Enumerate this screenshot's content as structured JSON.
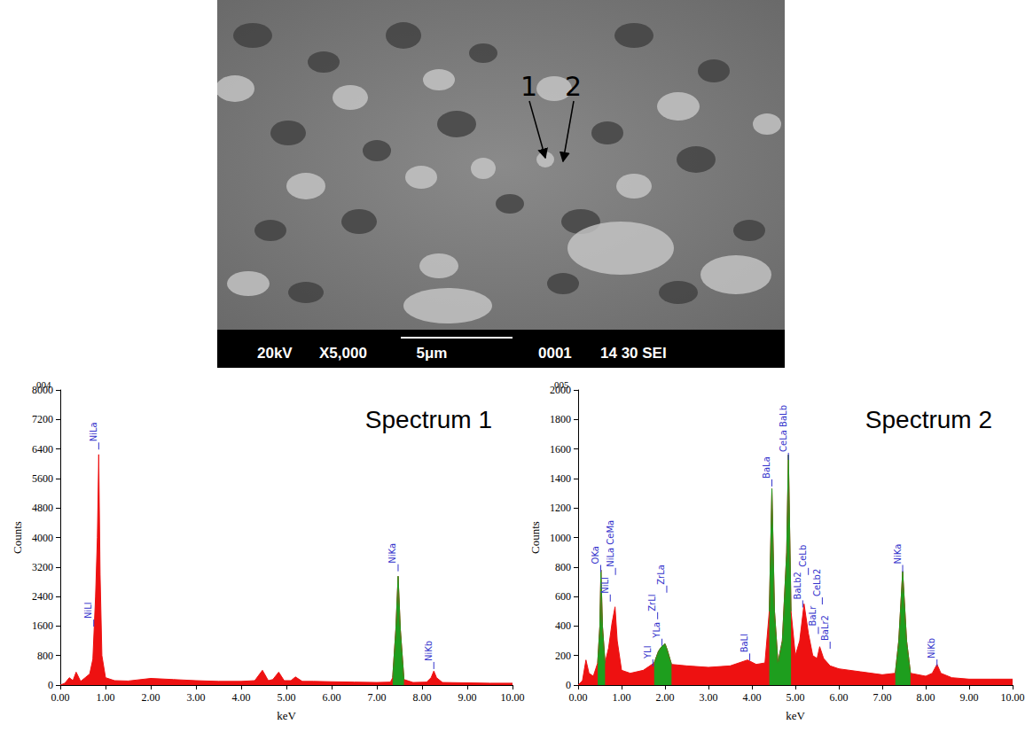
{
  "image": {
    "markers": [
      "1",
      "2"
    ],
    "info_bar": [
      "20kV",
      "X5,000",
      "5μm",
      "0001",
      "14 30 SEI"
    ]
  },
  "chart_data": [
    {
      "type": "area",
      "header": "004",
      "title": "Spectrum 1",
      "xlabel": "keV",
      "ylabel": "Counts",
      "x": [
        0,
        0.1,
        0.2,
        0.28,
        0.35,
        0.45,
        0.55,
        0.65,
        0.72,
        0.78,
        0.82,
        0.85,
        0.88,
        0.92,
        1.0,
        1.2,
        1.5,
        2.0,
        2.5,
        3.0,
        3.5,
        4.0,
        4.3,
        4.47,
        4.6,
        4.7,
        4.83,
        4.95,
        5.1,
        5.2,
        5.35,
        5.6,
        6.0,
        6.5,
        7.0,
        7.3,
        7.35,
        7.42,
        7.47,
        7.52,
        7.6,
        7.8,
        8.1,
        8.2,
        8.26,
        8.32,
        8.45,
        9.0,
        9.5,
        10.0
      ],
      "series": [
        {
          "color": "#ee1111",
          "values": [
            0,
            50,
            200,
            120,
            350,
            100,
            200,
            300,
            700,
            2400,
            4000,
            6250,
            3000,
            800,
            200,
            120,
            110,
            180,
            150,
            120,
            100,
            100,
            120,
            400,
            120,
            150,
            350,
            120,
            120,
            220,
            100,
            100,
            90,
            80,
            70,
            80,
            200,
            1500,
            2950,
            1500,
            150,
            70,
            80,
            200,
            380,
            200,
            70,
            60,
            50,
            50
          ]
        },
        {
          "color": "#1e9e1e",
          "values": [
            null,
            null,
            null,
            null,
            null,
            null,
            null,
            null,
            null,
            null,
            null,
            null,
            null,
            null,
            null,
            null,
            null,
            null,
            null,
            null,
            null,
            null,
            null,
            null,
            null,
            null,
            null,
            null,
            null,
            null,
            null,
            null,
            null,
            null,
            null,
            null,
            200,
            1500,
            2950,
            1500,
            150,
            null,
            null,
            null,
            null,
            null,
            null,
            null,
            null,
            null
          ]
        }
      ],
      "xlim": [
        0,
        10
      ],
      "xticks": [
        {
          "value": 0,
          "label": "0.00"
        },
        {
          "value": 1,
          "label": "1.00"
        },
        {
          "value": 2,
          "label": "2.00"
        },
        {
          "value": 3,
          "label": "3.00"
        },
        {
          "value": 4,
          "label": "4.00"
        },
        {
          "value": 5,
          "label": "5.00"
        },
        {
          "value": 6,
          "label": "6.00"
        },
        {
          "value": 7,
          "label": "7.00"
        },
        {
          "value": 8,
          "label": "8.00"
        },
        {
          "value": 9,
          "label": "9.00"
        },
        {
          "value": 10,
          "label": "10.00"
        }
      ],
      "ylim": [
        0,
        8000
      ],
      "yticks": [
        0,
        800,
        1600,
        2400,
        3200,
        4000,
        4800,
        5600,
        6400,
        7200,
        8000
      ],
      "grid": false,
      "annotations": [
        {
          "text": "NiLl",
          "x": 0.74,
          "y": 1800
        },
        {
          "text": "NiLa",
          "x": 0.85,
          "y": 6600
        },
        {
          "text": "NiKa",
          "x": 7.47,
          "y": 3300
        },
        {
          "text": "NiKb",
          "x": 8.26,
          "y": 650
        }
      ]
    },
    {
      "type": "area",
      "header": "005",
      "title": "Spectrum 2",
      "xlabel": "keV",
      "ylabel": "Counts",
      "x": [
        0,
        0.1,
        0.18,
        0.25,
        0.35,
        0.45,
        0.5,
        0.525,
        0.56,
        0.62,
        0.7,
        0.78,
        0.85,
        0.9,
        1.0,
        1.2,
        1.5,
        1.75,
        1.85,
        1.92,
        2.0,
        2.05,
        2.15,
        2.5,
        3.0,
        3.5,
        3.9,
        4.1,
        4.3,
        4.4,
        4.46,
        4.52,
        4.6,
        4.7,
        4.8,
        4.84,
        4.9,
        5.0,
        5.1,
        5.2,
        5.3,
        5.4,
        5.5,
        5.56,
        5.65,
        5.8,
        6.0,
        6.5,
        7.0,
        7.3,
        7.38,
        7.47,
        7.56,
        7.65,
        8.0,
        8.15,
        8.26,
        8.35,
        8.6,
        9.0,
        9.5,
        10.0
      ],
      "series": [
        {
          "color": "#ee1111",
          "values": [
            0,
            30,
            170,
            80,
            60,
            150,
            400,
            780,
            400,
            150,
            250,
            420,
            530,
            300,
            100,
            80,
            100,
            150,
            230,
            260,
            280,
            240,
            140,
            130,
            120,
            130,
            170,
            140,
            150,
            500,
            1330,
            500,
            150,
            300,
            900,
            1560,
            500,
            200,
            300,
            550,
            350,
            200,
            180,
            260,
            180,
            130,
            110,
            90,
            70,
            80,
            300,
            770,
            300,
            80,
            60,
            80,
            140,
            80,
            50,
            40,
            40,
            40
          ]
        },
        {
          "color": "#1e9e1e",
          "values": [
            null,
            null,
            null,
            null,
            null,
            150,
            400,
            780,
            400,
            150,
            null,
            null,
            null,
            null,
            null,
            null,
            null,
            150,
            230,
            260,
            280,
            240,
            140,
            null,
            null,
            null,
            null,
            null,
            null,
            500,
            1330,
            500,
            150,
            300,
            900,
            1560,
            500,
            null,
            null,
            null,
            null,
            null,
            null,
            null,
            null,
            null,
            null,
            null,
            null,
            80,
            300,
            770,
            300,
            80,
            null,
            null,
            null,
            null,
            null,
            null,
            null,
            null
          ]
        }
      ],
      "xlim": [
        0,
        10
      ],
      "xticks": [
        {
          "value": 0,
          "label": "0.00"
        },
        {
          "value": 1,
          "label": "1.00"
        },
        {
          "value": 2,
          "label": "2.00"
        },
        {
          "value": 3,
          "label": "3.00"
        },
        {
          "value": 4,
          "label": "4.00"
        },
        {
          "value": 5,
          "label": "5.00"
        },
        {
          "value": 6,
          "label": "6.00"
        },
        {
          "value": 7,
          "label": "7.00"
        },
        {
          "value": 8,
          "label": "8.00"
        },
        {
          "value": 9,
          "label": "9.00"
        },
        {
          "value": 10,
          "label": "10.00"
        }
      ],
      "ylim": [
        0,
        2000
      ],
      "yticks": [
        0,
        200,
        400,
        600,
        800,
        1000,
        1200,
        1400,
        1600,
        1800,
        2000
      ],
      "grid": false,
      "annotations": [
        {
          "text": "OKa",
          "x": 0.52,
          "y": 820
        },
        {
          "text": "NiLl",
          "x": 0.74,
          "y": 620
        },
        {
          "text": "NiLa CeMa",
          "x": 0.86,
          "y": 800
        },
        {
          "text": "YLl",
          "x": 1.72,
          "y": 180
        },
        {
          "text": "ZrLl",
          "x": 1.83,
          "y": 500
        },
        {
          "text": "YLa",
          "x": 1.93,
          "y": 320
        },
        {
          "text": "ZrLa",
          "x": 2.04,
          "y": 680
        },
        {
          "text": "BaLl",
          "x": 3.95,
          "y": 220
        },
        {
          "text": "BaLa",
          "x": 4.46,
          "y": 1400
        },
        {
          "text": "CeLa BaLb",
          "x": 4.84,
          "y": 1580
        },
        {
          "text": "BaLb2",
          "x": 5.17,
          "y": 580
        },
        {
          "text": "CeLb",
          "x": 5.3,
          "y": 800
        },
        {
          "text": "BaLr",
          "x": 5.53,
          "y": 400
        },
        {
          "text": "CeLb2",
          "x": 5.62,
          "y": 600
        },
        {
          "text": "BaLr2",
          "x": 5.8,
          "y": 300
        },
        {
          "text": "NiKa",
          "x": 7.47,
          "y": 820
        },
        {
          "text": "NiKb",
          "x": 8.26,
          "y": 180
        }
      ]
    }
  ]
}
